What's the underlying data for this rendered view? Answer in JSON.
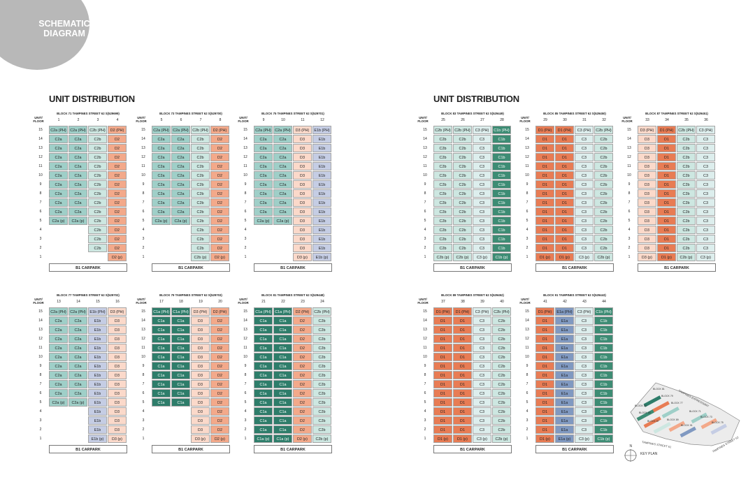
{
  "badge": {
    "line1": "SCHEMATIC",
    "line2": "DIAGRAM"
  },
  "headings": {
    "left": "UNIT DISTRIBUTION",
    "right": "UNIT DISTRIBUTION"
  },
  "labels": {
    "unit": "UNIT/",
    "floor": "FLOOR",
    "carpark": "B1 CARPARK"
  },
  "floors": [
    "15",
    "14",
    "13",
    "12",
    "11",
    "10",
    "9",
    "8",
    "7",
    "6",
    "5",
    "4",
    "3",
    "2",
    "1"
  ],
  "colors": {
    "C1a": "#2e7d6a",
    "C1b": "#3d8c74",
    "C2a": "#9fcfc8",
    "C2b": "#cde7e1",
    "C3": "#ddeeed",
    "D1": "#e87c54",
    "D2": "#f3a98a",
    "D3": "#fbd9ca",
    "E1a": "#8099c1",
    "E1b": "#c5cde4",
    "empty": "#ffffff"
  },
  "blocks": [
    {
      "title": "BLOCK 71 TAMPINES STREET 62 S(529699)",
      "units": [
        "1",
        "2",
        "3",
        "4"
      ],
      "columns": [
        {
          "type": "C2a",
          "top": "C2a (PH)",
          "bottom": "C2a (p)",
          "last": 5
        },
        {
          "type": "C2a",
          "top": "C2a (PH)",
          "bottom": "C2a (p)",
          "last": 5
        },
        {
          "type": "C2b",
          "top": "C2b (PH)",
          "bottom": "C2b",
          "last": 2
        },
        {
          "type": "D2",
          "top": "D2 (PH)",
          "bottom": "D2 (p)",
          "last": 1
        }
      ]
    },
    {
      "title": "BLOCK 73 TAMPINES STREET 62 S(529700)",
      "units": [
        "5",
        "6",
        "7",
        "8"
      ],
      "columns": [
        {
          "type": "C2a",
          "top": "C2a (PH)",
          "bottom": "C2a (p)",
          "last": 5
        },
        {
          "type": "C2a",
          "top": "C2a (PH)",
          "bottom": "C2a (p)",
          "last": 5
        },
        {
          "type": "C2b",
          "top": "C2b (PH)",
          "bottom": "C2b (p)",
          "last": 1
        },
        {
          "type": "D2",
          "top": "D2 (PH)",
          "bottom": "D2 (p)",
          "last": 1
        }
      ]
    },
    {
      "title": "BLOCK 75 TAMPINES STREET 62 S(529701)",
      "units": [
        "9",
        "10",
        "11",
        "12"
      ],
      "columns": [
        {
          "type": "C2a",
          "top": "C2a (PH)",
          "bottom": "C2a (p)",
          "last": 5
        },
        {
          "type": "C2a",
          "top": "C2a (PH)",
          "bottom": "C2a (p)",
          "last": 5
        },
        {
          "type": "D3",
          "top": "D3 (PH)",
          "bottom": "D3 (p)",
          "last": 1
        },
        {
          "type": "E1b",
          "top": "E1b (PH)",
          "bottom": "E1b (p)",
          "last": 1
        }
      ]
    },
    {
      "title": "BLOCK 83 TAMPINES STREET 62 S(529449)",
      "units": [
        "25",
        "26",
        "27",
        "28"
      ],
      "columns": [
        {
          "type": "C2b",
          "top": "C2b (PH)",
          "bottom": "C2b (p)",
          "last": 1
        },
        {
          "type": "C2b",
          "top": "C2b (PH)",
          "bottom": "C2b (p)",
          "last": 1
        },
        {
          "type": "C3",
          "top": "C3 (PH)",
          "bottom": "C3 (p)",
          "last": 1
        },
        {
          "type": "C1b",
          "top": "C1b (PH)",
          "bottom": "C1b (p)",
          "last": 1
        }
      ]
    },
    {
      "title": "BLOCK 85 TAMPINES STREET 62 S(529450)",
      "units": [
        "29",
        "30",
        "31",
        "32"
      ],
      "columns": [
        {
          "type": "D1",
          "top": "D1 (PH)",
          "bottom": "D1 (p)",
          "last": 1
        },
        {
          "type": "D1",
          "top": "D1 (PH)",
          "bottom": "D1 (p)",
          "last": 1
        },
        {
          "type": "C3",
          "top": "C3 (PH)",
          "bottom": "C3 (p)",
          "last": 1
        },
        {
          "type": "C2b",
          "top": "C2b (PH)",
          "bottom": "C2b (p)",
          "last": 1
        }
      ]
    },
    {
      "title": "BLOCK 87 TAMPINES STREET 62 S(529451)",
      "units": [
        "33",
        "34",
        "35",
        "36"
      ],
      "columns": [
        {
          "type": "D3",
          "top": "D3 (PH)",
          "bottom": "D3 (p)",
          "last": 1
        },
        {
          "type": "D1",
          "top": "D1 (PH)",
          "bottom": "D1 (p)",
          "last": 1
        },
        {
          "type": "C2b",
          "top": "C2b (PH)",
          "bottom": "C2b (p)",
          "last": 1
        },
        {
          "type": "C3",
          "top": "C3 (PH)",
          "bottom": "C3 (p)",
          "last": 1
        }
      ]
    },
    {
      "title": "BLOCK 77 TAMPINES STREET 62 S(529702)",
      "units": [
        "13",
        "14",
        "15",
        "16"
      ],
      "columns": [
        {
          "type": "C2a",
          "top": "C2a (PH)",
          "bottom": "C2a (p)",
          "last": 5
        },
        {
          "type": "C2a",
          "top": "C2a (PH)",
          "bottom": "C2a (p)",
          "last": 5
        },
        {
          "type": "E1b",
          "top": "E1b (PH)",
          "bottom": "E1b (p)",
          "last": 1
        },
        {
          "type": "D3",
          "top": "D3 (PH)",
          "bottom": "D3 (p)",
          "last": 1
        }
      ]
    },
    {
      "title": "BLOCK 79 TAMPINES STREET 62 S(529703)",
      "units": [
        "17",
        "18",
        "19",
        "20"
      ],
      "columns": [
        {
          "type": "C1a",
          "top": "C1a (PH)",
          "bottom": "C1a",
          "last": 5
        },
        {
          "type": "C1a",
          "top": "C1a (PH)",
          "bottom": "C1a",
          "last": 5
        },
        {
          "type": "D3",
          "top": "D3 (PH)",
          "bottom": "D3 (p)",
          "last": 1
        },
        {
          "type": "D2",
          "top": "D2 (PH)",
          "bottom": "D2 (p)",
          "last": 1
        }
      ]
    },
    {
      "title": "BLOCK 81 TAMPINES STREET 62 S(529448)",
      "units": [
        "21",
        "22",
        "23",
        "24"
      ],
      "columns": [
        {
          "type": "C1a",
          "top": "C1a (PH)",
          "bottom": "C1a (p)",
          "last": 1
        },
        {
          "type": "C1a",
          "top": "C1a (PH)",
          "bottom": "C1a (p)",
          "last": 1
        },
        {
          "type": "D2",
          "top": "D2 (PH)",
          "bottom": "D2 (p)",
          "last": 1
        },
        {
          "type": "C2b",
          "top": "C2b (PH)",
          "bottom": "C2b (p)",
          "last": 1
        }
      ]
    },
    {
      "title": "BLOCK 89 TAMPINES STREET 62 S(529452)",
      "units": [
        "37",
        "38",
        "39",
        "40"
      ],
      "columns": [
        {
          "type": "D1",
          "top": "D1 (PH)",
          "bottom": "D1 (p)",
          "last": 1
        },
        {
          "type": "D1",
          "top": "D1 (PH)",
          "bottom": "D1 (p)",
          "last": 1
        },
        {
          "type": "C3",
          "top": "C3 (PH)",
          "bottom": "C3 (p)",
          "last": 1
        },
        {
          "type": "C2b",
          "top": "C2b (PH)",
          "bottom": "C2b (p)",
          "last": 1
        }
      ]
    },
    {
      "title": "BLOCK 91 TAMPINES STREET 62 S(529443)",
      "units": [
        "41",
        "42",
        "43",
        "44"
      ],
      "columns": [
        {
          "type": "D1",
          "top": "D1 (PH)",
          "bottom": "D1 (p)",
          "last": 1
        },
        {
          "type": "E1a",
          "top": "E1a (PH)",
          "bottom": "E1a (p)",
          "last": 1
        },
        {
          "type": "C3",
          "top": "C3 (PH)",
          "bottom": "C3 (p)",
          "last": 1
        },
        {
          "type": "C1b",
          "top": "C1b (PH)",
          "bottom": "C1b (p)",
          "last": 1
        }
      ]
    }
  ],
  "keyplan": {
    "label": "KEY PLAN",
    "north": "N",
    "roads": [
      "TAMPINES EXPRESSWAY",
      "TAMPINES STREET 62",
      "TAMPINES STREET 61"
    ],
    "blocks": [
      "BLOCK 81",
      "BLOCK 79",
      "BLOCK 77",
      "BLOCK 83",
      "BLOCK 85",
      "BLOCK 87",
      "BLOCK 89",
      "BLOCK 91",
      "BLOCK 71",
      "BLOCK 73",
      "BLOCK 75"
    ]
  }
}
